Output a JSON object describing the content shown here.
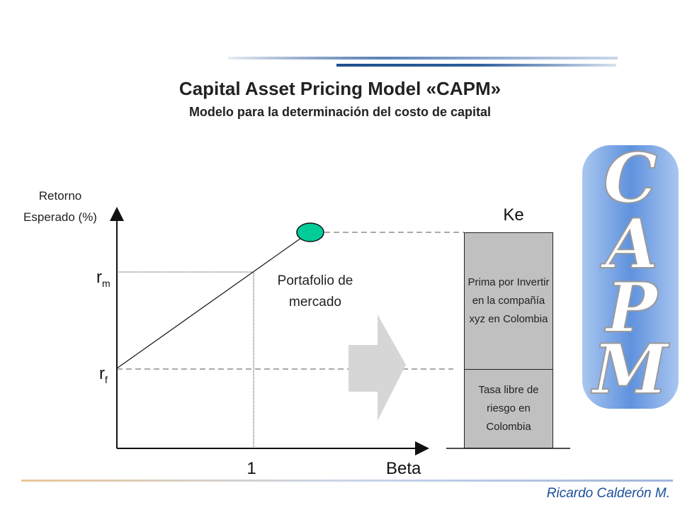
{
  "title": "Capital Asset Pricing Model «CAPM»",
  "subtitle": "Modelo para la determinación del costo de capital",
  "y_axis_label_line1": "Retorno",
  "y_axis_label_line2": "Esperado (%)",
  "rm_base": "r",
  "rm_sub": "m",
  "rf_base": "r",
  "rf_sub": "f",
  "portfolio_label_line1": "Portafolio de",
  "portfolio_label_line2": "mercado",
  "x_tick_one": "1",
  "x_axis_label": "Beta",
  "ke_label": "Ke",
  "premium_box_text": "Prima por Invertir en la compañía xyz en Colombia",
  "riskfree_box_text": "Tasa libre de riesgo en Colombia",
  "footer": "Ricardo Calderón M.",
  "logo_letters": [
    "C",
    "A",
    "P",
    "M"
  ],
  "colors": {
    "header_line_dark": "#1f4e8c",
    "market_point": "#00cc99",
    "arrow": "#d6d6d6",
    "box_fill": "#c0c0c0",
    "logo_band": "#6f9fe0",
    "footer": "#1a4f9c"
  }
}
